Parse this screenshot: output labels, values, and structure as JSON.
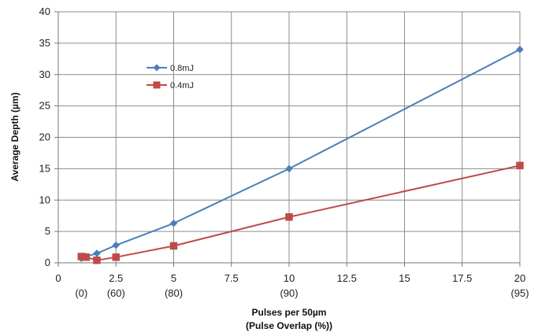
{
  "chart_data": {
    "type": "line",
    "title": "",
    "xlabel": "Pulses per 50µm",
    "xlabel2": "(Pulse Overlap (%))",
    "ylabel": "Average Depth (µm)",
    "xlim": [
      0,
      20
    ],
    "ylim": [
      0,
      40
    ],
    "xticks": [
      0,
      2.5,
      5,
      7.5,
      10,
      12.5,
      15,
      17.5,
      20
    ],
    "xtick_labels": [
      "0",
      "2.5",
      "5",
      "7.5",
      "10",
      "12.5",
      "15",
      "17.5",
      "20"
    ],
    "yticks": [
      0,
      5,
      10,
      15,
      20,
      25,
      30,
      35,
      40
    ],
    "ytick_labels": [
      "0",
      "5",
      "10",
      "15",
      "20",
      "25",
      "30",
      "35",
      "40"
    ],
    "overlap_labels": [
      {
        "x": 1,
        "label": "(0)"
      },
      {
        "x": 2.5,
        "label": "(60)"
      },
      {
        "x": 5,
        "label": "(80)"
      },
      {
        "x": 10,
        "label": "(90)"
      },
      {
        "x": 20,
        "label": "(95)"
      }
    ],
    "grid": true,
    "legend_position": "top-left",
    "series": [
      {
        "name": "0.8mJ",
        "color": "#4a7ebb",
        "marker": "diamond",
        "x": [
          1,
          1.2,
          1.67,
          2.5,
          5,
          10,
          20
        ],
        "y": [
          0.7,
          1.0,
          1.5,
          2.8,
          6.3,
          15.0,
          34.0
        ]
      },
      {
        "name": "0.4mJ",
        "color": "#be4b48",
        "marker": "square",
        "x": [
          1,
          1.2,
          1.67,
          2.5,
          5,
          10,
          20
        ],
        "y": [
          1.0,
          0.9,
          0.4,
          0.9,
          2.7,
          7.3,
          15.5
        ]
      }
    ]
  }
}
